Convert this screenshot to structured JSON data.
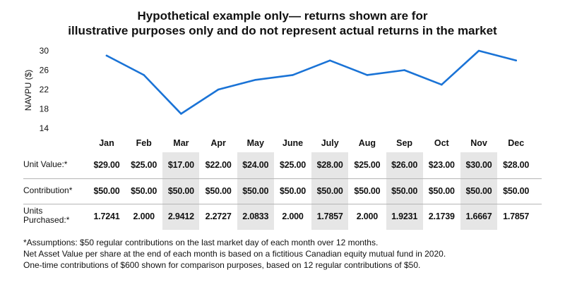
{
  "title": {
    "line1": "Hypothetical example only— returns shown are for",
    "line2": "illustrative purposes only and do not represent actual returns in the market"
  },
  "chart_data": {
    "type": "line",
    "title": "Hypothetical example only— returns shown are for illustrative purposes only and do not represent actual returns in the market",
    "xlabel": "",
    "ylabel": "NAVPU ($)",
    "categories": [
      "Jan",
      "Feb",
      "Mar",
      "Apr",
      "May",
      "June",
      "July",
      "Aug",
      "Sep",
      "Oct",
      "Nov",
      "Dec"
    ],
    "series": [
      {
        "values": [
          29,
          25,
          17,
          22,
          24,
          25,
          28,
          25,
          26,
          23,
          30,
          28
        ]
      }
    ],
    "ylim": [
      14,
      30
    ],
    "yticks": [
      14,
      18,
      22,
      26,
      30
    ],
    "grid": false,
    "line_color": "#1a73d6"
  },
  "table": {
    "rows": [
      {
        "label": "Unit Value:*",
        "values": [
          "$29.00",
          "$25.00",
          "$17.00",
          "$22.00",
          "$24.00",
          "$25.00",
          "$28.00",
          "$25.00",
          "$26.00",
          "$23.00",
          "$30.00",
          "$28.00"
        ]
      },
      {
        "label": "Contribution*",
        "values": [
          "$50.00",
          "$50.00",
          "$50.00",
          "$50.00",
          "$50.00",
          "$50.00",
          "$50.00",
          "$50.00",
          "$50.00",
          "$50.00",
          "$50.00",
          "$50.00"
        ]
      },
      {
        "label_line1": "Units",
        "label_line2": "Purchased:*",
        "values": [
          "1.7241",
          "2.000",
          "2.9412",
          "2.2727",
          "2.0833",
          "2.000",
          "1.7857",
          "2.000",
          "1.9231",
          "2.1739",
          "1.6667",
          "1.7857"
        ]
      }
    ],
    "shade_color": "#e6e6e6"
  },
  "notes": [
    "*Assumptions: $50 regular contributions on the last market day of each month over 12 months.",
    "Net Asset Value per share at the end of each month is based on a fictitious Canadian equity mutual fund in 2020.",
    "One-time contributions of $600 shown for comparison purposes, based on 12 regular contributions of $50."
  ]
}
